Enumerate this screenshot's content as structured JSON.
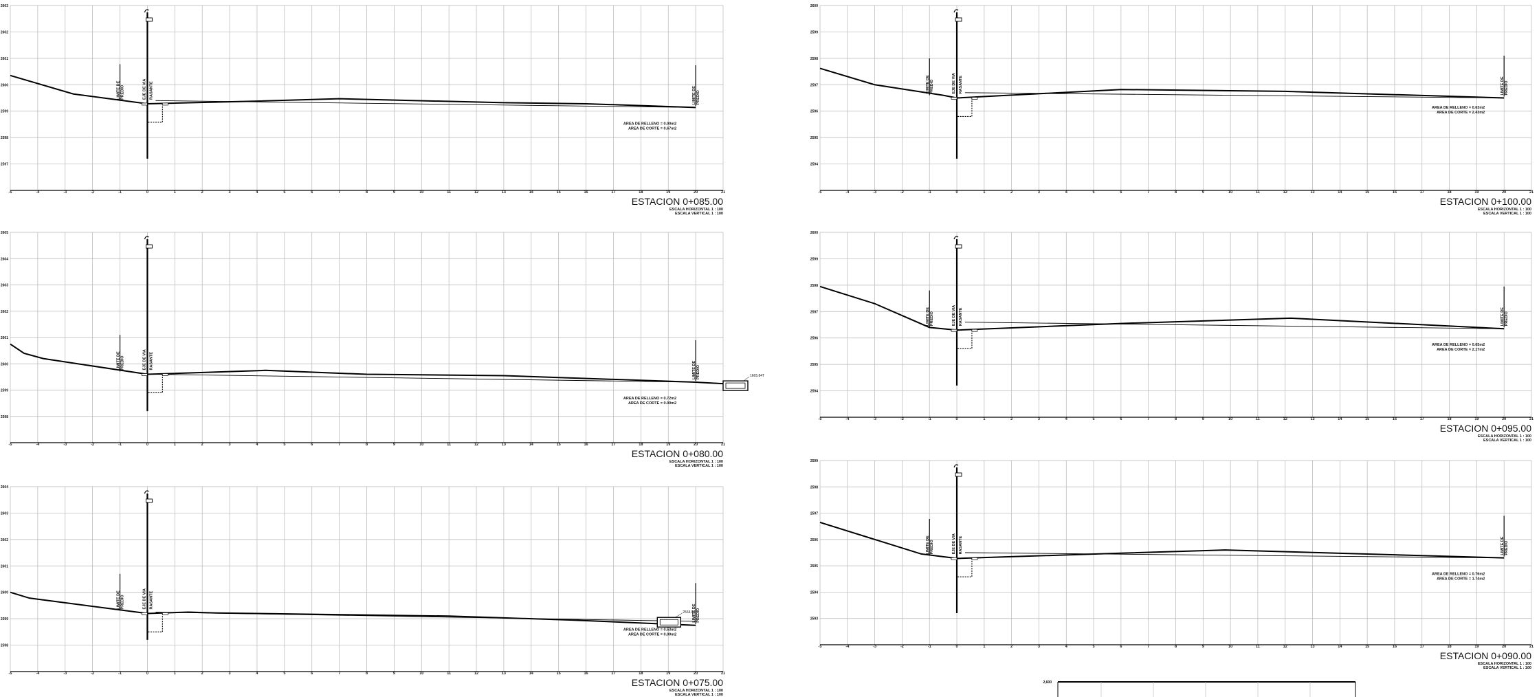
{
  "sheet": {
    "background": "#ffffff",
    "grid_color": "#b5b5b5",
    "line_color": "#000000"
  },
  "panels": [
    {
      "id": "p085",
      "title": "ESTACION  0+085.00",
      "scale_h": "ESCALA HORIZONTAL 1 : 100",
      "scale_v": "ESCALA VERTICAL 1 : 100",
      "fill_area": "AREA DE RELLENO = 0.00m2",
      "cut_area": "AREA DE CORTE = 0.67m2",
      "y_ticks": [
        "2603",
        "2602",
        "2601",
        "2600",
        "2599",
        "2598",
        "2597"
      ],
      "x_ticks": [
        "-5",
        "-4",
        "-3",
        "-2",
        "-1",
        "0",
        "1",
        "2",
        "3",
        "4",
        "5",
        "6",
        "7",
        "8",
        "9",
        "10",
        "11",
        "12",
        "13",
        "14",
        "15",
        "16",
        "17",
        "18",
        "19",
        "20",
        "21"
      ],
      "ground": [
        [
          -5,
          2600.35
        ],
        [
          -2.7,
          2599.65
        ],
        [
          0,
          2599.28
        ],
        [
          4,
          2599.38
        ],
        [
          7,
          2599.47
        ],
        [
          13,
          2599.32
        ],
        [
          16,
          2599.28
        ],
        [
          20,
          2599.14
        ]
      ],
      "design": [
        [
          0.3,
          2599.4
        ],
        [
          20,
          2599.14
        ]
      ],
      "labels": {
        "left_a": "LIMITE DE",
        "left_b": "PREDIO",
        "center_a": "EJE DE VIA",
        "center_b": "RASANTE",
        "right_a": "LIMITE DE",
        "right_b": "PREDIO"
      }
    },
    {
      "id": "p080",
      "title": "ESTACION  0+080.00",
      "scale_h": "ESCALA HORIZONTAL 1 : 100",
      "scale_v": "ESCALA VERTICAL 1 : 100",
      "fill_area": "AREA DE RELLENO = 0.72m2",
      "cut_area": "AREA DE CORTE = 0.00m2",
      "y_ticks": [
        "2605",
        "2604",
        "2603",
        "2602",
        "2601",
        "2600",
        "2599",
        "2598"
      ],
      "x_ticks": [
        "-5",
        "-4",
        "-3",
        "-2",
        "-1",
        "0",
        "1",
        "2",
        "3",
        "4",
        "5",
        "6",
        "7",
        "8",
        "9",
        "10",
        "11",
        "12",
        "13",
        "14",
        "15",
        "16",
        "17",
        "18",
        "19",
        "20",
        "21"
      ],
      "ground": [
        [
          -5,
          2600.75
        ],
        [
          -4.5,
          2600.4
        ],
        [
          -3.8,
          2600.2
        ],
        [
          0,
          2599.6
        ],
        [
          4.3,
          2599.75
        ],
        [
          8,
          2599.6
        ],
        [
          13,
          2599.55
        ],
        [
          20,
          2599.3
        ],
        [
          21.8,
          2599.2
        ]
      ],
      "design": [
        [
          0.3,
          2599.6
        ],
        [
          20,
          2599.3
        ]
      ],
      "structure_note": "1665.84T",
      "labels": {
        "left_a": "LIMITE DE",
        "left_b": "PREDIO",
        "center_a": "EJE DE VIA",
        "center_b": "RASANTE",
        "right_a": "LIMITE DE",
        "right_b": "PREDIO"
      }
    },
    {
      "id": "p075",
      "title": "ESTACION  0+075.00",
      "scale_h": "ESCALA HORIZONTAL 1 : 100",
      "scale_v": "ESCALA VERTICAL 1 : 100",
      "fill_area": "AREA DE RELLENO = 0.53m2",
      "cut_area": "AREA DE CORTE = 0.00m2",
      "y_ticks": [
        "2604",
        "2603",
        "2602",
        "2601",
        "2600",
        "2599",
        "2598"
      ],
      "x_ticks": [
        "-5",
        "-4",
        "-3",
        "-2",
        "-1",
        "0",
        "1",
        "2",
        "3",
        "4",
        "5",
        "6",
        "7",
        "8",
        "9",
        "10",
        "11",
        "12",
        "13",
        "14",
        "15",
        "16",
        "17",
        "18",
        "19",
        "20",
        "21"
      ],
      "ground": [
        [
          -5,
          2600.0
        ],
        [
          -4.3,
          2599.78
        ],
        [
          0,
          2599.2
        ],
        [
          1.5,
          2599.25
        ],
        [
          2.5,
          2599.22
        ],
        [
          11,
          2599.1
        ],
        [
          15.5,
          2598.95
        ],
        [
          20,
          2598.75
        ]
      ],
      "design": [
        [
          0.3,
          2599.25
        ],
        [
          20,
          2598.9
        ]
      ],
      "structure_note": "2564.99T",
      "labels": {
        "left_a": "LIMITE DE",
        "left_b": "PREDIO",
        "center_a": "EJE DE VIA",
        "center_b": "RASANTE",
        "right_a": "LIMITE DE",
        "right_b": "PREDIO"
      }
    },
    {
      "id": "p100",
      "title": "ESTACION  0+100.00",
      "scale_h": "ESCALA HORIZONTAL 1 : 100",
      "scale_v": "ESCALA VERTICAL 1 : 100",
      "fill_area": "AREA DE RELLENO = 0.63m2",
      "cut_area": "AREA DE CORTE = 2.43m2",
      "y_ticks": [
        "2600",
        "2599",
        "2598",
        "2597",
        "2596",
        "2595",
        "2594"
      ],
      "x_ticks": [
        "-5",
        "-4",
        "-3",
        "-2",
        "-1",
        "0",
        "1",
        "2",
        "3",
        "4",
        "5",
        "6",
        "7",
        "8",
        "9",
        "10",
        "11",
        "12",
        "13",
        "14",
        "15",
        "16",
        "17",
        "18",
        "19",
        "20",
        "21"
      ],
      "ground": [
        [
          -5,
          2597.62
        ],
        [
          -3,
          2597.0
        ],
        [
          -0.5,
          2596.6
        ],
        [
          0,
          2596.5
        ],
        [
          6,
          2596.82
        ],
        [
          12,
          2596.75
        ],
        [
          20,
          2596.5
        ]
      ],
      "design": [
        [
          0.3,
          2596.7
        ],
        [
          20,
          2596.5
        ]
      ],
      "labels": {
        "left_a": "LIMITE DE",
        "left_b": "PREDIO",
        "center_a": "EJE DE VIA",
        "center_b": "RASANTE",
        "right_a": "LIMITE DE",
        "right_b": "PREDIO"
      }
    },
    {
      "id": "p095",
      "title": "ESTACION  0+095.00",
      "scale_h": "ESCALA HORIZONTAL 1 : 100",
      "scale_v": "ESCALA VERTICAL 1 : 100",
      "fill_area": "AREA DE RELLENO = 0.65m2",
      "cut_area": "AREA DE CORTE = 2.17m2",
      "y_ticks": [
        "2600",
        "2599",
        "2598",
        "2597",
        "2596",
        "2595",
        "2594"
      ],
      "x_ticks": [
        "-5",
        "-4",
        "-3",
        "-2",
        "-1",
        "0",
        "1",
        "2",
        "3",
        "4",
        "5",
        "6",
        "7",
        "8",
        "9",
        "10",
        "11",
        "12",
        "13",
        "14",
        "15",
        "16",
        "17",
        "18",
        "19",
        "20",
        "21"
      ],
      "ground": [
        [
          -5,
          2597.95
        ],
        [
          -3,
          2597.3
        ],
        [
          -1,
          2596.4
        ],
        [
          0,
          2596.3
        ],
        [
          6,
          2596.55
        ],
        [
          12.2,
          2596.75
        ],
        [
          20,
          2596.35
        ]
      ],
      "design": [
        [
          0.3,
          2596.6
        ],
        [
          20,
          2596.35
        ]
      ],
      "labels": {
        "left_a": "LIMITE DE",
        "left_b": "PREDIO",
        "center_a": "EJE DE VIA",
        "center_b": "RASANTE",
        "right_a": "LIMITE DE",
        "right_b": "PREDIO"
      }
    },
    {
      "id": "p090",
      "title": "ESTACION  0+090.00",
      "scale_h": "ESCALA HORIZONTAL 1 : 100",
      "scale_v": "ESCALA VERTICAL 1 : 100",
      "fill_area": "AREA DE RELLENO = 0.76m2",
      "cut_area": "AREA DE CORTE = 1.74m2",
      "y_ticks": [
        "2599",
        "2598",
        "2597",
        "2596",
        "2595",
        "2594",
        "2593"
      ],
      "x_ticks": [
        "-5",
        "-4",
        "-3",
        "-2",
        "-1",
        "0",
        "1",
        "2",
        "3",
        "4",
        "5",
        "6",
        "7",
        "8",
        "9",
        "10",
        "11",
        "12",
        "13",
        "14",
        "15",
        "16",
        "17",
        "18",
        "19",
        "20",
        "21"
      ],
      "ground": [
        [
          -5,
          2596.65
        ],
        [
          -3,
          2596.0
        ],
        [
          -1.3,
          2595.45
        ],
        [
          0,
          2595.28
        ],
        [
          6,
          2595.48
        ],
        [
          9.8,
          2595.6
        ],
        [
          20,
          2595.3
        ]
      ],
      "design": [
        [
          0.3,
          2595.5
        ],
        [
          20,
          2595.3
        ]
      ],
      "labels": {
        "left_a": "LIMITE DE",
        "left_b": "PREDIO",
        "center_a": "EJE DE VIA",
        "center_b": "RASANTE",
        "right_a": "LIMITE DE",
        "right_b": "PREDIO"
      }
    }
  ],
  "partial_panel": {
    "y_tick": "2,600"
  }
}
